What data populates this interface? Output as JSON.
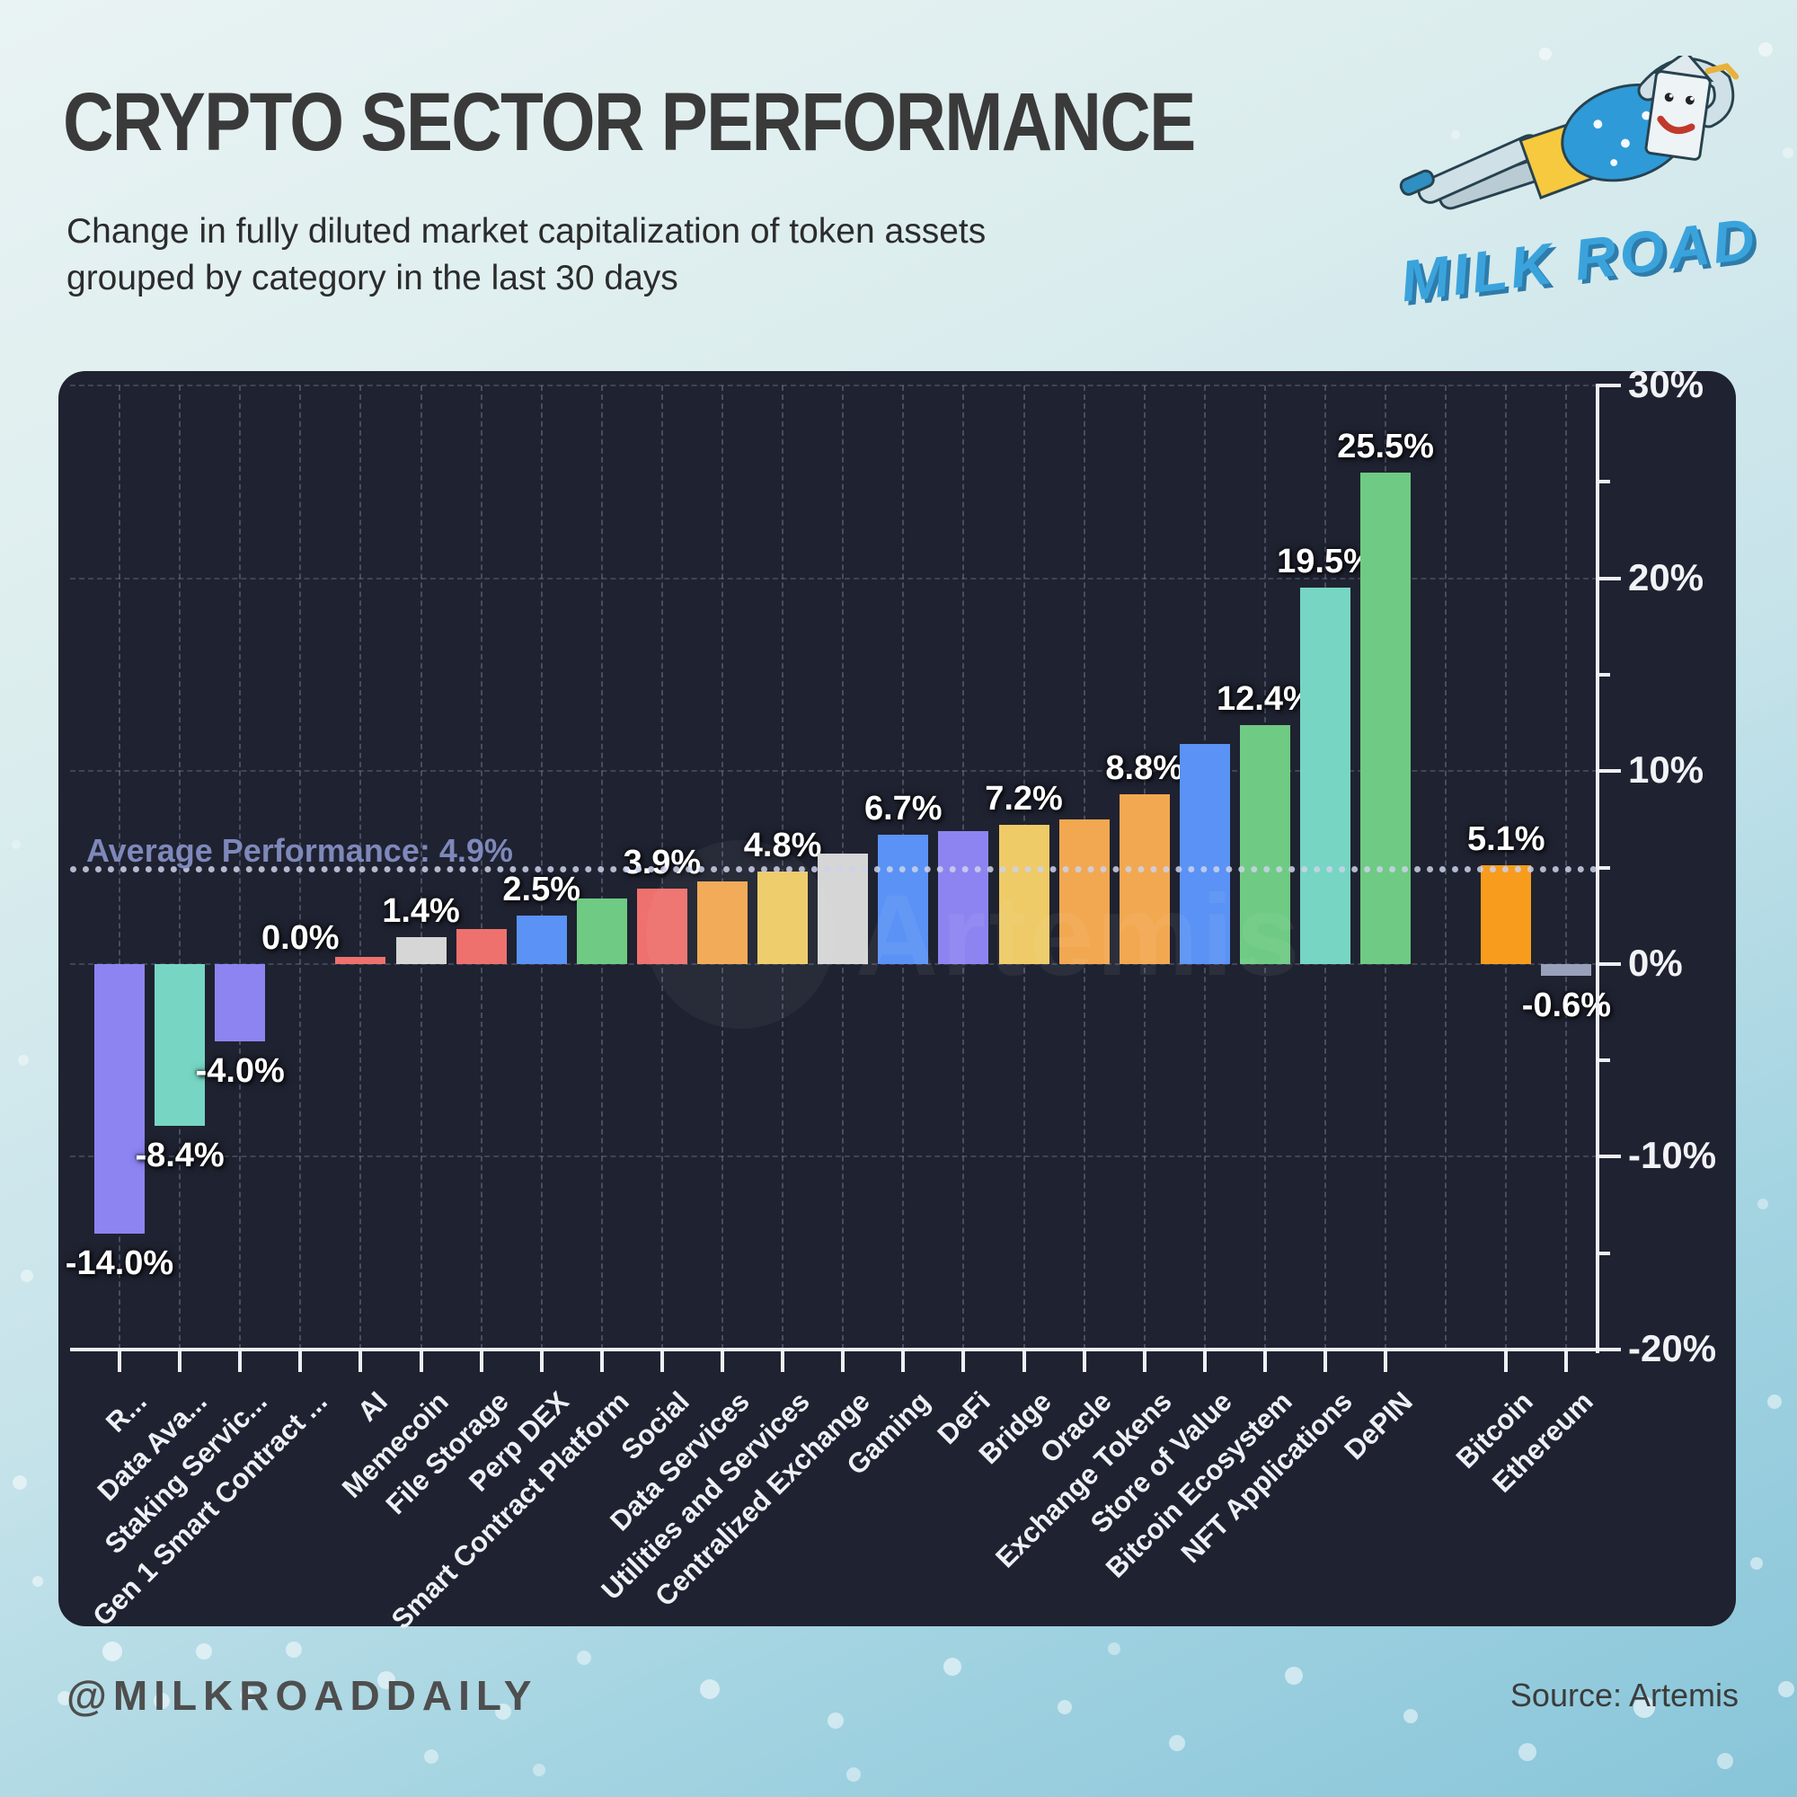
{
  "header": {
    "title": "CRYPTO SECTOR PERFORMANCE",
    "subtitle_line1": "Change in fully diluted market capitalization of token assets",
    "subtitle_line2": "grouped by category in the last 30 days"
  },
  "logo": {
    "text": "MILK ROAD"
  },
  "watermark": {
    "text": "Artemis"
  },
  "footer": {
    "handle": "@MILKROADDAILY",
    "source": "Source: Artemis"
  },
  "chart_data": {
    "type": "bar",
    "title": "CRYPTO SECTOR PERFORMANCE",
    "xlabel": "",
    "ylabel": "",
    "ylim": [
      -20,
      30
    ],
    "grid": "dashed",
    "panel_background": "#1f2230",
    "average": {
      "value": 4.9,
      "label": "Average Performance: 4.9%",
      "line_color": "#cdd2eb",
      "style": "dotted"
    },
    "gap_before_index": 22,
    "y_axis": {
      "major": [
        {
          "value": 30,
          "label": "30%"
        },
        {
          "value": 20,
          "label": "20%"
        },
        {
          "value": 10,
          "label": "10%"
        },
        {
          "value": 0,
          "label": "0%"
        },
        {
          "value": -10,
          "label": "-10%"
        },
        {
          "value": -20,
          "label": "-20%"
        }
      ],
      "minor": [
        25,
        15,
        5,
        -5,
        -15
      ],
      "gridlines": [
        30,
        20,
        10,
        0,
        -10
      ]
    },
    "bars": [
      {
        "name": "R...",
        "value": -14.0,
        "label": "-14.0%",
        "color": "#8d84f2"
      },
      {
        "name": "Data Ava...",
        "value": -8.4,
        "label": "-8.4%",
        "color": "#76d6c3"
      },
      {
        "name": "Staking Servic...",
        "value": -4.0,
        "label": "-4.0%",
        "color": "#8d84f2"
      },
      {
        "name": "Gen 1 Smart Contract ...",
        "value": 0.0,
        "label": "0.0%",
        "color": "#ee716d"
      },
      {
        "name": "AI",
        "value": 0.35,
        "label": null,
        "color": "#ee716d"
      },
      {
        "name": "Memecoin",
        "value": 1.4,
        "label": "1.4%",
        "color": "#d6d6d6"
      },
      {
        "name": "File Storage",
        "value": 1.8,
        "label": null,
        "color": "#ee716d"
      },
      {
        "name": "Perp DEX",
        "value": 2.5,
        "label": "2.5%",
        "color": "#5a92f5"
      },
      {
        "name": "Smart Contract Platform",
        "value": 3.4,
        "label": null,
        "color": "#6fcb83"
      },
      {
        "name": "Social",
        "value": 3.9,
        "label": "3.9%",
        "color": "#ee716d"
      },
      {
        "name": "Data Services",
        "value": 4.3,
        "label": null,
        "color": "#f2a851"
      },
      {
        "name": "Utilities and Services",
        "value": 4.8,
        "label": "4.8%",
        "color": "#eecb66"
      },
      {
        "name": "Centralized Exchange",
        "value": 5.7,
        "label": null,
        "color": "#d6d6d6"
      },
      {
        "name": "Gaming",
        "value": 6.7,
        "label": "6.7%",
        "color": "#5a92f5"
      },
      {
        "name": "DeFi",
        "value": 6.9,
        "label": null,
        "color": "#8d84f2"
      },
      {
        "name": "Bridge",
        "value": 7.2,
        "label": "7.2%",
        "color": "#eecb66"
      },
      {
        "name": "Oracle",
        "value": 7.5,
        "label": null,
        "color": "#f2a851"
      },
      {
        "name": "Exchange Tokens",
        "value": 8.8,
        "label": "8.8%",
        "color": "#f2a851"
      },
      {
        "name": "Store of Value",
        "value": 11.4,
        "label": null,
        "color": "#5a92f5"
      },
      {
        "name": "Bitcoin Ecosystem",
        "value": 12.4,
        "label": "12.4%",
        "color": "#6fcb83"
      },
      {
        "name": "NFT Applications",
        "value": 19.5,
        "label": "19.5%",
        "color": "#76d6c3"
      },
      {
        "name": "DePIN",
        "value": 25.5,
        "label": "25.5%",
        "color": "#6fcb83"
      },
      {
        "name": "Bitcoin",
        "value": 5.1,
        "label": "5.1%",
        "color": "#f79c1d"
      },
      {
        "name": "Ethereum",
        "value": -0.6,
        "label": "-0.6%",
        "color": "#98a0ba"
      }
    ]
  }
}
